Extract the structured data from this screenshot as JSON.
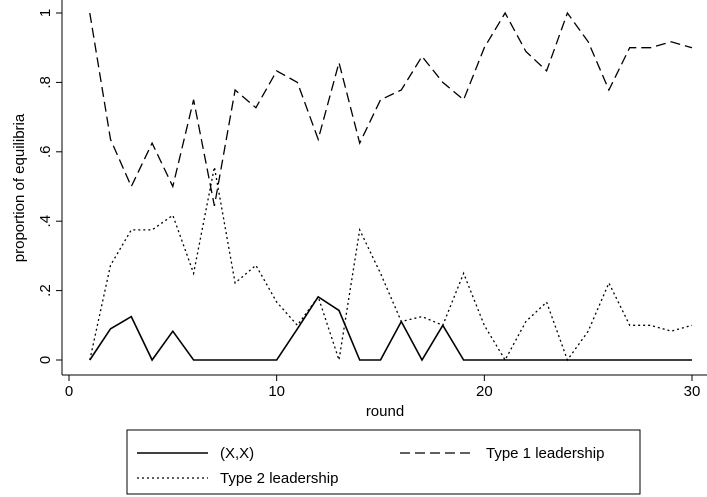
{
  "chart_data": {
    "type": "line",
    "xlabel": "round",
    "ylabel": "proportion of equilibria",
    "xlim": [
      0,
      30
    ],
    "ylim": [
      0,
      1
    ],
    "x_ticks": [
      0,
      10,
      20,
      30
    ],
    "x_tick_labels": [
      "0",
      "10",
      "20",
      "30"
    ],
    "y_ticks": [
      0,
      0.2,
      0.4,
      0.6,
      0.8,
      1
    ],
    "y_tick_labels": [
      "0",
      ".2",
      ".4",
      ".6",
      ".8",
      "1"
    ],
    "grid": false,
    "legend_position": "bottom",
    "x": [
      1,
      2,
      3,
      4,
      5,
      6,
      7,
      8,
      9,
      10,
      11,
      12,
      13,
      14,
      15,
      16,
      17,
      18,
      19,
      20,
      21,
      22,
      23,
      24,
      25,
      26,
      27,
      28,
      29,
      30
    ],
    "series": [
      {
        "name": "(X,X)",
        "style": "solid",
        "values": [
          0,
          0.09,
          0.125,
          0,
          0.083,
          0,
          0,
          0,
          0,
          0,
          0.09,
          0.182,
          0.143,
          0,
          0,
          0.111,
          0,
          0.1,
          0,
          0,
          0,
          0,
          0,
          0,
          0,
          0,
          0,
          0,
          0,
          0
        ]
      },
      {
        "name": "Type 1 leadership",
        "style": "dashed",
        "values": [
          1,
          0.636,
          0.5,
          0.625,
          0.5,
          0.75,
          0.444,
          0.778,
          0.727,
          0.833,
          0.8,
          0.636,
          0.857,
          0.625,
          0.75,
          0.778,
          0.875,
          0.8,
          0.75,
          0.9,
          1,
          0.889,
          0.833,
          1,
          0.917,
          0.778,
          0.9,
          0.9,
          0.917,
          0.9
        ]
      },
      {
        "name": "Type 2 leadership",
        "style": "dotted",
        "values": [
          0,
          0.273,
          0.375,
          0.375,
          0.417,
          0.25,
          0.556,
          0.222,
          0.273,
          0.167,
          0.1,
          0.182,
          0,
          0.375,
          0.25,
          0.111,
          0.125,
          0.1,
          0.25,
          0.1,
          0,
          0.111,
          0.167,
          0,
          0.083,
          0.222,
          0.1,
          0.1,
          0.083,
          0.1
        ]
      }
    ]
  }
}
